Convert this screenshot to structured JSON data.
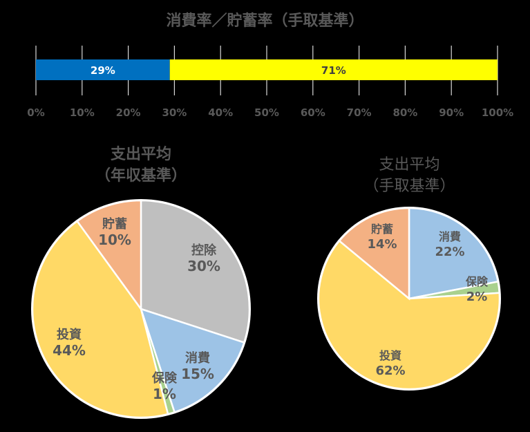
{
  "chart_data": [
    {
      "type": "bar",
      "orientation": "horizontal-stacked-100",
      "title": "消費率／貯蓄率（手取基準）",
      "categories": [
        ""
      ],
      "series": [
        {
          "name": "消費率",
          "values": [
            29
          ],
          "label": "29%",
          "color": "#0070C0"
        },
        {
          "name": "貯蓄率",
          "values": [
            71
          ],
          "label": "71%",
          "color": "#FFFF00"
        }
      ],
      "xlim": [
        0,
        100
      ],
      "xticks": [
        "0%",
        "10%",
        "20%",
        "30%",
        "40%",
        "50%",
        "60%",
        "70%",
        "80%",
        "90%",
        "100%"
      ],
      "grid": true,
      "legend": "none"
    },
    {
      "type": "pie",
      "title": "支出平均（年収基準）",
      "title_lines": [
        "支出平均",
        "（年収基準）"
      ],
      "slices": [
        {
          "label": "控除",
          "value": 30,
          "display": "30%",
          "color": "#BFBFBF"
        },
        {
          "label": "消費",
          "value": 15,
          "display": "15%",
          "color": "#9DC3E6"
        },
        {
          "label": "保険",
          "value": 1,
          "display": "1%",
          "color": "#A9D18E"
        },
        {
          "label": "投資",
          "value": 44,
          "display": "44%",
          "color": "#FFD966"
        },
        {
          "label": "貯蓄",
          "value": 10,
          "display": "10%",
          "color": "#F4B183"
        }
      ]
    },
    {
      "type": "pie",
      "title": "支出平均（手取基準）",
      "title_lines": [
        "支出平均",
        "（手取基準）"
      ],
      "slices": [
        {
          "label": "消費",
          "value": 22,
          "display": "22%",
          "color": "#9DC3E6"
        },
        {
          "label": "保険",
          "value": 2,
          "display": "2%",
          "color": "#A9D18E"
        },
        {
          "label": "投資",
          "value": 62,
          "display": "62%",
          "color": "#FFD966"
        },
        {
          "label": "貯蓄",
          "value": 14,
          "display": "14%",
          "color": "#F4B183"
        }
      ]
    }
  ],
  "bar_chart": {
    "title": "消費率／貯蓄率（手取基準）",
    "seg1_label": "29%",
    "seg2_label": "71%"
  },
  "pie_left": {
    "title_line1": "支出平均",
    "title_line2": "（年収基準）"
  },
  "pie_right": {
    "title_line1": "支出平均",
    "title_line2": "（手取基準）"
  },
  "colors": {
    "text": "#595959",
    "bar_blue": "#0070C0",
    "bar_yellow": "#FFFF00",
    "grid": "#D9D9D9"
  }
}
